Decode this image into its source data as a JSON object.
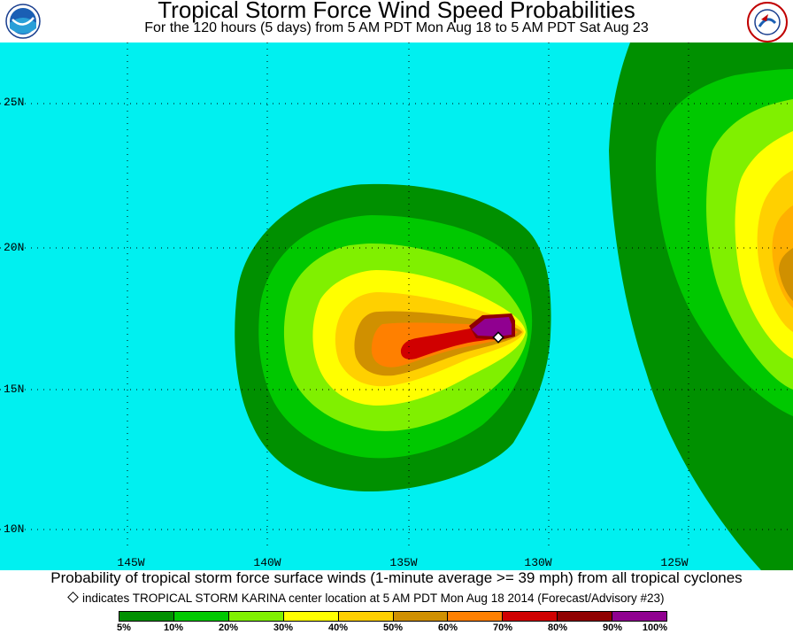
{
  "title": "Tropical Storm Force Wind Speed Probabilities",
  "subtitle": "For the 120 hours (5 days) from 5 AM PDT Mon Aug 18 to 5 AM PDT Sat Aug 23",
  "logos": {
    "left": "noaa-logo",
    "right": "nws-logo"
  },
  "map": {
    "background_color": "#00f0f0",
    "latitude_labels": [
      "25N",
      "20N",
      "15N",
      "10N"
    ],
    "longitude_labels": [
      "145W",
      "140W",
      "135W",
      "130W",
      "125W"
    ]
  },
  "caption": "Probability of tropical storm force surface winds (1-minute average >= 39 mph) from all tropical cyclones",
  "marker_note": "indicates TROPICAL STORM KARINA center location at 5 AM PDT Mon Aug 18 2014 (Forecast/Advisory #23)",
  "legend": {
    "colors": [
      "#009000",
      "#00c800",
      "#80f000",
      "#ffff00",
      "#ffd000",
      "#d09000",
      "#ff8000",
      "#d00000",
      "#900000",
      "#900090"
    ],
    "labels": [
      "5%",
      "10%",
      "20%",
      "30%",
      "40%",
      "50%",
      "60%",
      "70%",
      "80%",
      "90%",
      "100%"
    ]
  }
}
